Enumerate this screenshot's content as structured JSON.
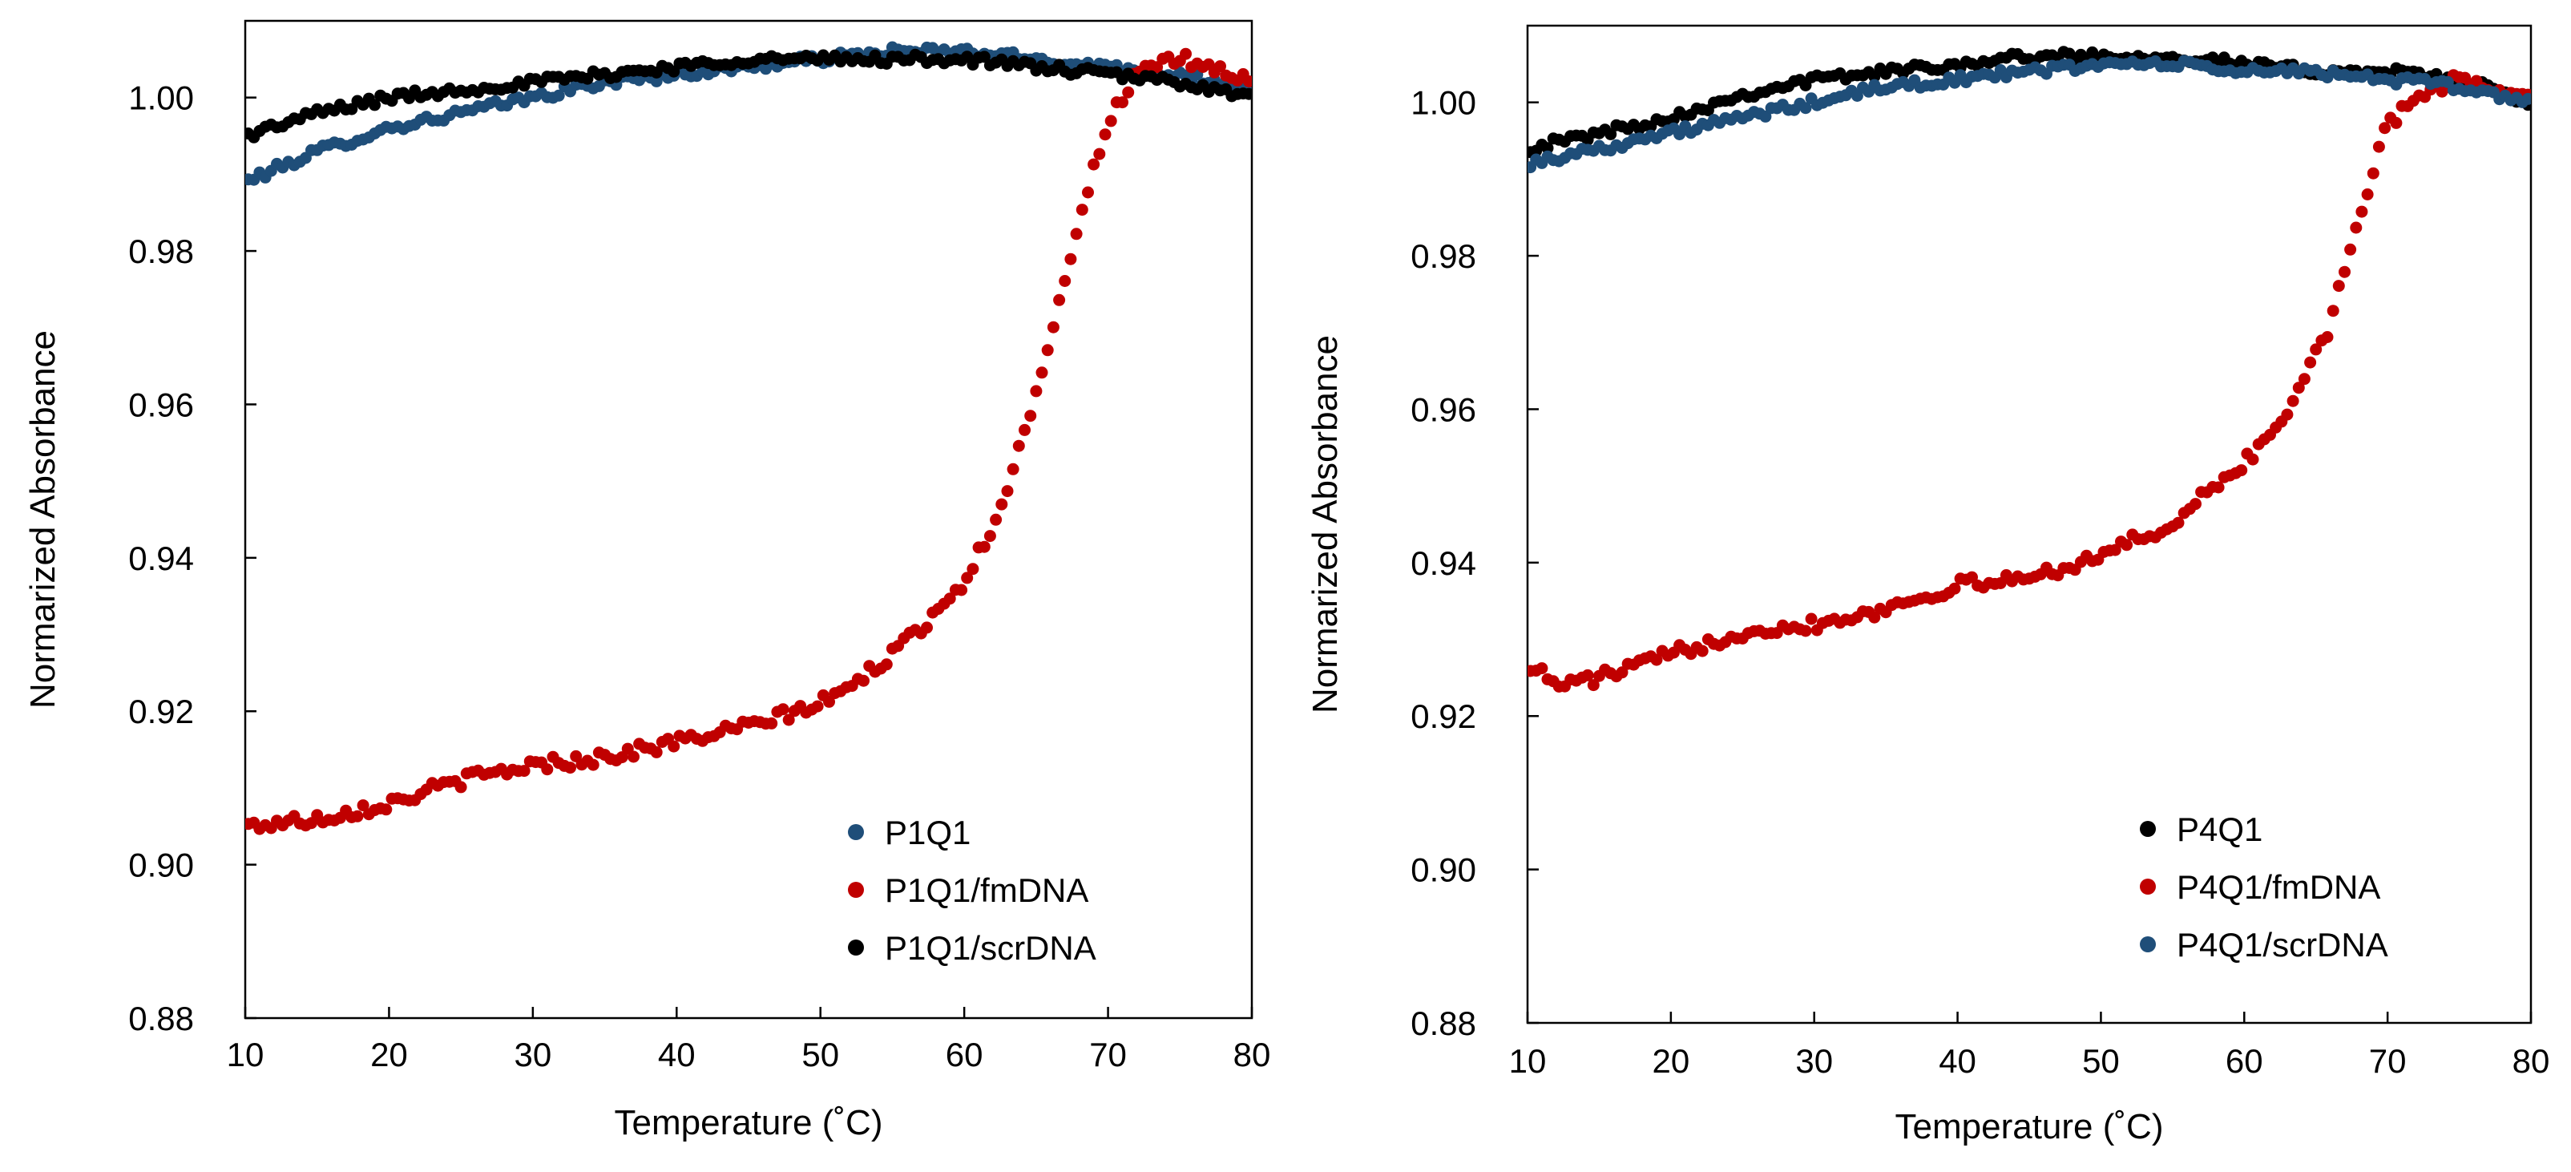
{
  "chart_data": [
    {
      "type": "scatter",
      "xlabel": "Temperature (˚C)",
      "ylabel": "Normarized Absorbance",
      "xlim": [
        10,
        80
      ],
      "ylim": [
        0.88,
        1.01
      ],
      "xticks": [
        10,
        20,
        30,
        40,
        50,
        60,
        70,
        80
      ],
      "xtick_labels": [
        "10",
        "20",
        "30",
        "40",
        "50",
        "60",
        "70",
        "80"
      ],
      "yticks": [
        0.88,
        0.9,
        0.92,
        0.94,
        0.96,
        0.98,
        1.0
      ],
      "ytick_labels": [
        "0.88",
        "0.90",
        "0.92",
        "0.94",
        "0.96",
        "0.98",
        "1.00"
      ],
      "legend_position": "bottom-right",
      "series": [
        {
          "name": "P1Q1",
          "color": "#1F4E79",
          "x": [
            10,
            15,
            20,
            25,
            30,
            35,
            40,
            45,
            50,
            55,
            60,
            65,
            70,
            75,
            80
          ],
          "y": [
            0.989,
            0.993,
            0.996,
            0.998,
            1.0,
            1.002,
            1.003,
            1.004,
            1.005,
            1.006,
            1.006,
            1.005,
            1.004,
            1.003,
            1.001
          ]
        },
        {
          "name": "P1Q1/fmDNA",
          "color": "#C00000",
          "x": [
            10,
            15,
            20,
            25,
            30,
            35,
            40,
            45,
            50,
            52,
            54,
            56,
            58,
            60,
            62,
            64,
            66,
            68,
            70,
            72,
            75,
            77,
            80
          ],
          "y": [
            0.905,
            0.906,
            0.908,
            0.911,
            0.913,
            0.914,
            0.916,
            0.918,
            0.921,
            0.923,
            0.926,
            0.929,
            0.933,
            0.937,
            0.944,
            0.955,
            0.969,
            0.984,
            0.997,
            1.003,
            1.005,
            1.004,
            1.002
          ]
        },
        {
          "name": "P1Q1/scrDNA",
          "color": "#000000",
          "x": [
            10,
            15,
            20,
            25,
            30,
            35,
            40,
            45,
            50,
            55,
            60,
            65,
            70,
            75,
            80
          ],
          "y": [
            0.995,
            0.998,
            1.0,
            1.001,
            1.002,
            1.003,
            1.004,
            1.005,
            1.005,
            1.005,
            1.005,
            1.004,
            1.003,
            1.002,
            1.0
          ]
        }
      ]
    },
    {
      "type": "scatter",
      "xlabel": "Temperature (˚C)",
      "ylabel": "Normarized Absorbance",
      "xlim": [
        10,
        80
      ],
      "ylim": [
        0.88,
        1.01
      ],
      "xticks": [
        10,
        20,
        30,
        40,
        50,
        60,
        70,
        80
      ],
      "xtick_labels": [
        "10",
        "20",
        "30",
        "40",
        "50",
        "60",
        "70",
        "80"
      ],
      "yticks": [
        0.88,
        0.9,
        0.92,
        0.94,
        0.96,
        0.98,
        1.0
      ],
      "ytick_labels": [
        "0.88",
        "0.90",
        "0.92",
        "0.94",
        "0.96",
        "0.98",
        "1.00"
      ],
      "legend_position": "bottom-right",
      "series": [
        {
          "name": "P4Q1",
          "color": "#000000",
          "x": [
            10,
            15,
            20,
            25,
            30,
            35,
            40,
            45,
            50,
            55,
            60,
            65,
            70,
            75,
            80
          ],
          "y": [
            0.994,
            0.996,
            0.998,
            1.001,
            1.003,
            1.004,
            1.005,
            1.006,
            1.006,
            1.006,
            1.005,
            1.004,
            1.004,
            1.003,
            1.0
          ]
        },
        {
          "name": "P4Q1/fmDNA",
          "color": "#C00000",
          "x": [
            10,
            12,
            15,
            20,
            25,
            30,
            35,
            40,
            45,
            50,
            55,
            58,
            60,
            62,
            64,
            66,
            68,
            70,
            72,
            75,
            77,
            80
          ],
          "y": [
            0.927,
            0.924,
            0.925,
            0.928,
            0.931,
            0.932,
            0.934,
            0.937,
            0.938,
            0.941,
            0.945,
            0.95,
            0.953,
            0.957,
            0.963,
            0.971,
            0.985,
            0.997,
            1.001,
            1.003,
            1.002,
            1.001
          ]
        },
        {
          "name": "P4Q1/scrDNA",
          "color": "#1F4E79",
          "x": [
            10,
            15,
            20,
            25,
            30,
            35,
            40,
            45,
            50,
            55,
            60,
            65,
            70,
            75,
            80
          ],
          "y": [
            0.992,
            0.994,
            0.996,
            0.998,
            1.0,
            1.002,
            1.003,
            1.004,
            1.005,
            1.005,
            1.004,
            1.004,
            1.003,
            1.002,
            1.0
          ]
        }
      ]
    }
  ]
}
